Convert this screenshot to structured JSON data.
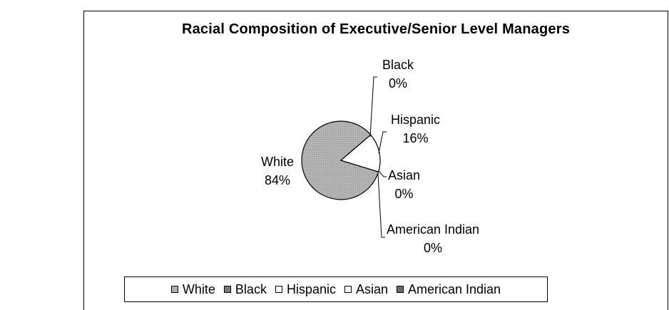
{
  "chart_data": {
    "type": "pie",
    "title": "Racial Composition of Executive/Senior Level Managers",
    "slices": [
      {
        "name": "White",
        "value": 84,
        "label": "84%",
        "color": "#a8a8a8"
      },
      {
        "name": "Black",
        "value": 0,
        "label": "0%",
        "color": "#7a7a7a"
      },
      {
        "name": "Hispanic",
        "value": 16,
        "label": "16%",
        "color": "#ffffff"
      },
      {
        "name": "Asian",
        "value": 0,
        "label": "0%",
        "color": "#ffffff"
      },
      {
        "name": "American Indian",
        "value": 0,
        "label": "0%",
        "color": "#6a6a6a"
      }
    ],
    "legend_position": "bottom"
  }
}
